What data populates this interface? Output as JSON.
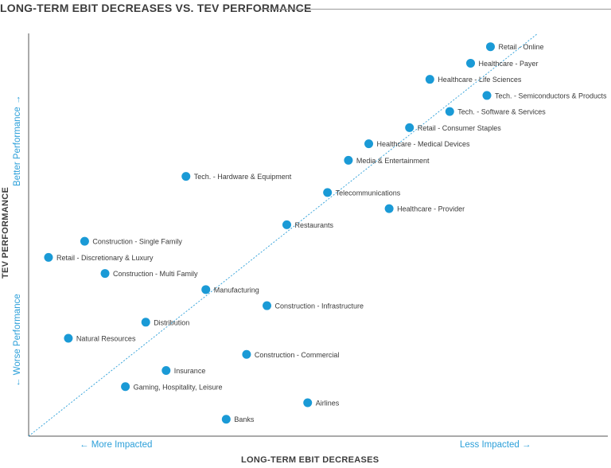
{
  "chart_data": {
    "type": "scatter",
    "title": "LONG-TERM EBIT DECREASES VS. TEV PERFORMANCE",
    "xlabel": "LONG-TERM EBIT DECREASES",
    "ylabel": "TEV PERFORMANCE",
    "x_direction_labels": {
      "left": "← More Impacted",
      "right": "Less Impacted →"
    },
    "y_direction_labels": {
      "top": "Better Performance →",
      "bottom": "← Worse Performance"
    },
    "xlim": [
      0,
      100
    ],
    "ylim": [
      0,
      100
    ],
    "trendline": {
      "from": [
        0,
        0
      ],
      "to": [
        100,
        100
      ]
    },
    "marker_color": "#1a9ad6",
    "trendline_color": "#2b9fd9",
    "points": [
      {
        "label": "Retail - Online",
        "x": 90.7,
        "y": 96.7
      },
      {
        "label": "Healthcare - Payer",
        "x": 86.8,
        "y": 92.6
      },
      {
        "label": "Healthcare - Life Sciences",
        "x": 78.8,
        "y": 88.6
      },
      {
        "label": "Tech. - Semiconductors & Products",
        "x": 90.0,
        "y": 84.6
      },
      {
        "label": "Tech. - Software & Services",
        "x": 82.7,
        "y": 80.6
      },
      {
        "label": "Retail - Consumer Staples",
        "x": 74.8,
        "y": 76.6
      },
      {
        "label": "Healthcare - Medical Devices",
        "x": 66.8,
        "y": 72.6
      },
      {
        "label": "Media & Entertainment",
        "x": 62.8,
        "y": 68.5
      },
      {
        "label": "Tech. - Hardware & Equipment",
        "x": 30.9,
        "y": 64.5
      },
      {
        "label": "Telecommunications",
        "x": 58.7,
        "y": 60.5
      },
      {
        "label": "Healthcare - Provider",
        "x": 70.8,
        "y": 56.5
      },
      {
        "label": "Restaurants",
        "x": 50.7,
        "y": 52.5
      },
      {
        "label": "Construction - Single Family",
        "x": 11.0,
        "y": 48.4
      },
      {
        "label": "Retail - Discretionary & Luxury",
        "x": 3.9,
        "y": 44.4
      },
      {
        "label": "Construction - Multi Family",
        "x": 15.0,
        "y": 40.4
      },
      {
        "label": "Manufacturing",
        "x": 34.8,
        "y": 36.4
      },
      {
        "label": "Construction - Infrastructure",
        "x": 46.8,
        "y": 32.4
      },
      {
        "label": "Distribution",
        "x": 23.0,
        "y": 28.3
      },
      {
        "label": "Natural Resources",
        "x": 7.8,
        "y": 24.3
      },
      {
        "label": "Construction - Commercial",
        "x": 42.8,
        "y": 20.3
      },
      {
        "label": "Insurance",
        "x": 27.0,
        "y": 16.3
      },
      {
        "label": "Gaming, Hospitality, Leisure",
        "x": 19.0,
        "y": 12.3
      },
      {
        "label": "Airlines",
        "x": 54.8,
        "y": 8.3
      },
      {
        "label": "Banks",
        "x": 38.8,
        "y": 4.2
      }
    ]
  }
}
